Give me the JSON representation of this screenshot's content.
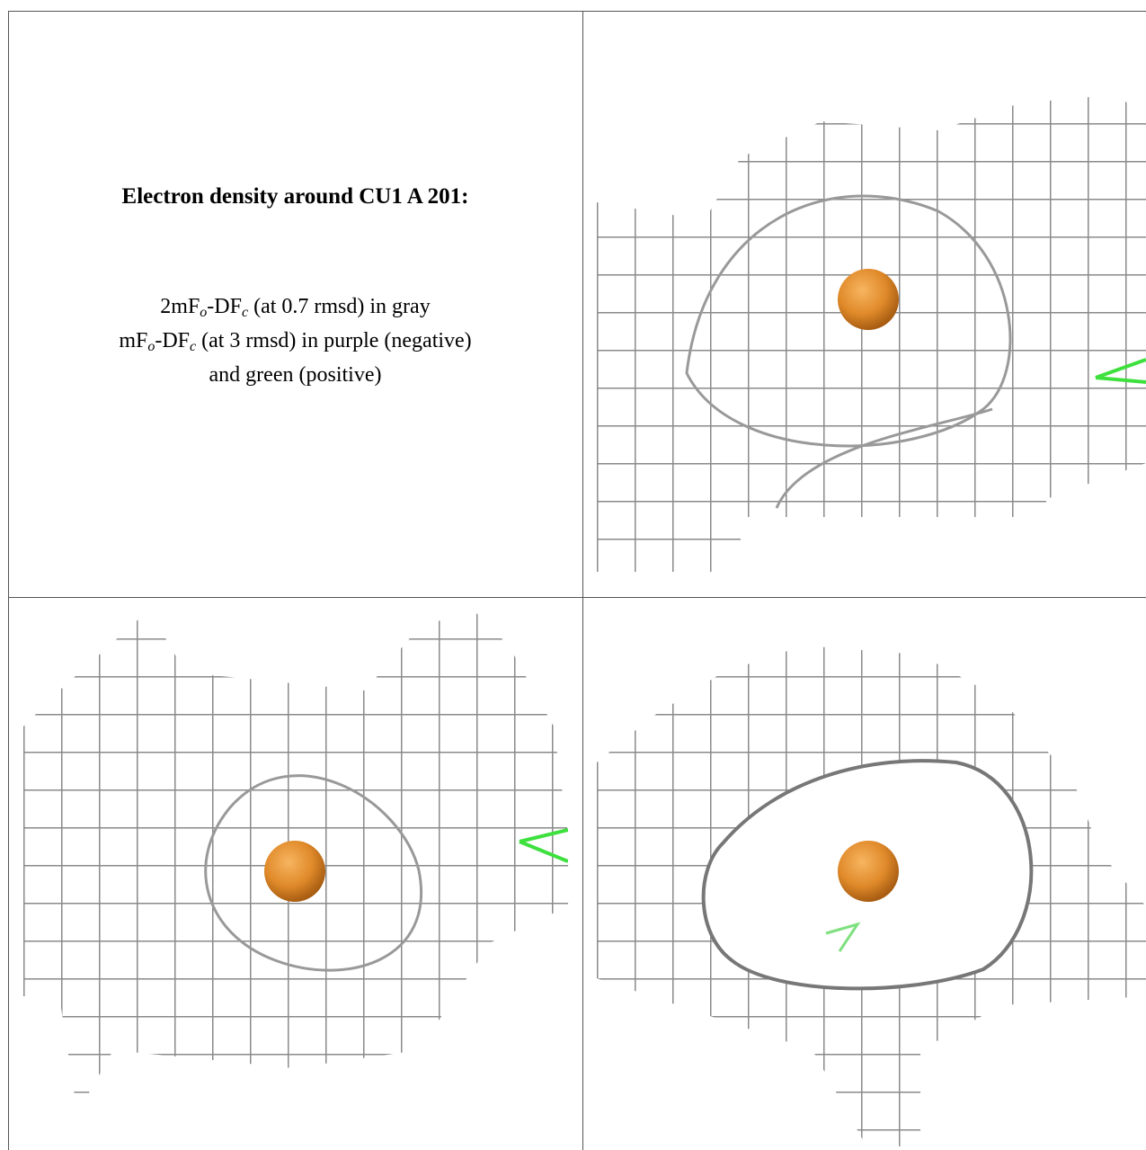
{
  "title": "Electron density around CU1 A 201:",
  "lines": [
    [
      "2mF",
      "o",
      "-DF",
      "c",
      " (at 0.7 rmsd) in gray"
    ],
    [
      "mF",
      "o",
      "-DF",
      "c",
      " (at 3 rmsd) in purple (negative)"
    ],
    [
      "and green (positive)"
    ]
  ]
}
